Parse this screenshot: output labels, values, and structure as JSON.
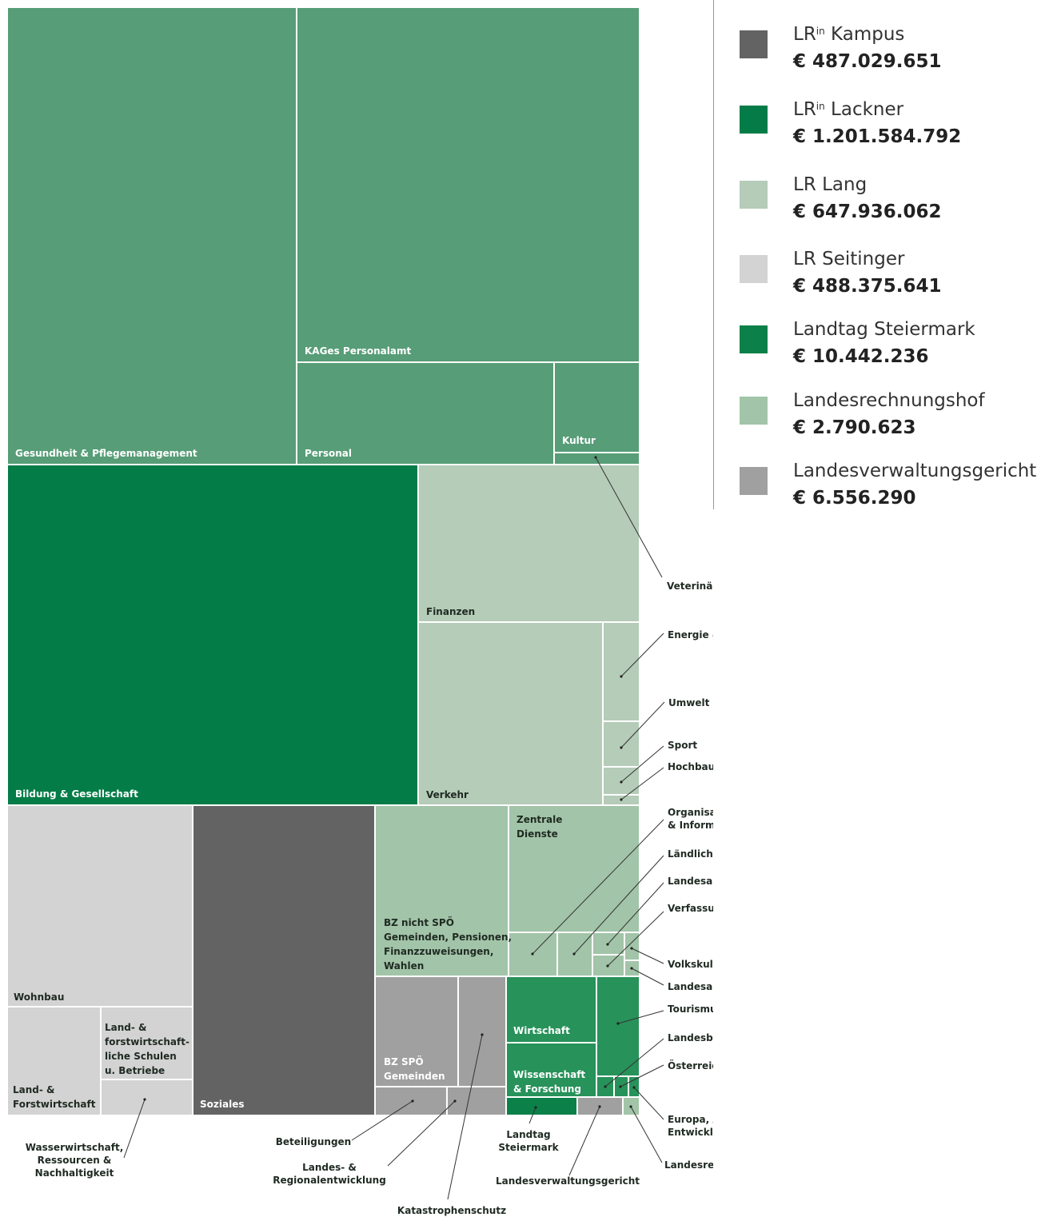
{
  "chart_data": {
    "type": "treemap",
    "colors": {
      "kampus": "#636363",
      "lackner": "#037c47",
      "lang": "#b5ccb8",
      "seitinger": "#d3d3d3",
      "landtag": "#0c8049",
      "lrh": "#a2c4a8",
      "lvwg": "#a0a0a0",
      "schoepfer_legacy": "#579d77",
      "wirtschaft_green": "#27925a"
    },
    "legend": [
      {
        "key": "kampus",
        "name": "LR",
        "sup": "in",
        "name_rest": " Kampus",
        "value": "€ 487.029.651"
      },
      {
        "key": "lackner",
        "name": "LR",
        "sup": "in",
        "name_rest": " Lackner",
        "value": "€ 1.201.584.792"
      },
      {
        "key": "lang",
        "name": "LR Lang",
        "sup": "",
        "name_rest": "",
        "value": "€ 647.936.062"
      },
      {
        "key": "seitinger",
        "name": "LR Seitinger",
        "sup": "",
        "name_rest": "",
        "value": "€ 488.375.641"
      },
      {
        "key": "landtag",
        "name": "Landtag Steiermark",
        "sup": "",
        "name_rest": "",
        "value": "€ 10.442.236"
      },
      {
        "key": "lrh",
        "name": "Landesrechnungshof",
        "sup": "",
        "name_rest": "",
        "value": "€ 2.790.623"
      },
      {
        "key": "lvwg",
        "name": "Landesverwaltungsgericht",
        "sup": "",
        "name_rest": "",
        "value": "€ 6.556.290"
      }
    ],
    "cells": [
      {
        "id": "gesundheit",
        "label": [
          "Gesundheit & Pflegemanagement"
        ],
        "group": "schoepfer_legacy"
      },
      {
        "id": "kages",
        "label": [
          "KAGes Personalamt"
        ],
        "group": "schoepfer_legacy"
      },
      {
        "id": "personal",
        "label": [
          "Personal"
        ],
        "group": "schoepfer_legacy"
      },
      {
        "id": "kultur",
        "label": [
          "Kultur"
        ],
        "group": "schoepfer_legacy"
      },
      {
        "id": "veterinaer",
        "label": [],
        "group": "schoepfer_legacy"
      },
      {
        "id": "bildung",
        "label": [
          "Bildung & Gesellschaft"
        ],
        "group": "lackner"
      },
      {
        "id": "finanzen",
        "label": [
          "Finanzen"
        ],
        "group": "lang"
      },
      {
        "id": "verkehr",
        "label": [
          "Verkehr"
        ],
        "group": "lang"
      },
      {
        "id": "energie",
        "label": [],
        "group": "lang"
      },
      {
        "id": "umwelt",
        "label": [],
        "group": "lang"
      },
      {
        "id": "sport",
        "label": [],
        "group": "lang"
      },
      {
        "id": "hochbau",
        "label": [],
        "group": "lang"
      },
      {
        "id": "wohnbau",
        "label": [
          "Wohnbau"
        ],
        "group": "seitinger"
      },
      {
        "id": "landforst",
        "label": [
          "Land- &",
          "Forstwirtschaft"
        ],
        "group": "seitinger"
      },
      {
        "id": "schulen",
        "label": [
          "Land- &",
          "forstwirtschaft-",
          "liche Schulen",
          "u. Betriebe"
        ],
        "group": "seitinger"
      },
      {
        "id": "wasser",
        "label": [],
        "group": "seitinger"
      },
      {
        "id": "soziales",
        "label": [
          "Soziales"
        ],
        "group": "kampus"
      },
      {
        "id": "bznicht",
        "label": [
          "BZ nicht SPÖ",
          "Gemeinden, Pensionen,",
          "Finanzzuweisungen,",
          "Wahlen"
        ],
        "group": "lrh"
      },
      {
        "id": "zentrale",
        "label": [
          "Zentrale",
          "Dienste"
        ],
        "group": "lrh"
      },
      {
        "id": "organisation",
        "label": [],
        "group": "lrh"
      },
      {
        "id": "wegebau",
        "label": [],
        "group": "lrh"
      },
      {
        "id": "landesamt",
        "label": [],
        "group": "lrh"
      },
      {
        "id": "verfassung",
        "label": [],
        "group": "lrh"
      },
      {
        "id": "volkskultur",
        "label": [],
        "group": "lrh"
      },
      {
        "id": "landesarchiv",
        "label": [],
        "group": "lrh"
      },
      {
        "id": "bzspoe",
        "label": [
          "BZ SPÖ",
          "Gemeinden"
        ],
        "group": "lvwg"
      },
      {
        "id": "katastrophen",
        "label": [],
        "group": "lvwg"
      },
      {
        "id": "beteiligungen",
        "label": [],
        "group": "lvwg"
      },
      {
        "id": "regional",
        "label": [],
        "group": "lvwg"
      },
      {
        "id": "wirtschaft",
        "label": [
          "Wirtschaft"
        ],
        "group": "wirtschaft_green"
      },
      {
        "id": "wissenschaft",
        "label": [
          "Wissenschaft",
          "& Forschung"
        ],
        "group": "wirtschaft_green"
      },
      {
        "id": "tourismus",
        "label": [],
        "group": "wirtschaft_green"
      },
      {
        "id": "landesbib",
        "label": [],
        "group": "wirtschaft_green"
      },
      {
        "id": "oesterreichring",
        "label": [],
        "group": "wirtschaft_green"
      },
      {
        "id": "europa",
        "label": [],
        "group": "wirtschaft_green"
      },
      {
        "id": "landtag",
        "label": [],
        "group": "landtag"
      },
      {
        "id": "lvwg",
        "label": [],
        "group": "lvwg"
      },
      {
        "id": "lrh",
        "label": [],
        "group": "lrh"
      }
    ],
    "callouts": [
      {
        "id": "veterinaer",
        "label": [
          "Veterinärwesen"
        ]
      },
      {
        "id": "energie",
        "label": [
          "Energie & Umweltkontrolle"
        ]
      },
      {
        "id": "umwelt",
        "label": [
          "Umwelt & Raumordnung"
        ]
      },
      {
        "id": "sport",
        "label": [
          "Sport"
        ]
      },
      {
        "id": "hochbau",
        "label": [
          "Hochbau"
        ]
      },
      {
        "id": "organisation",
        "label": [
          "Organisation",
          "& Informationstechnik"
        ]
      },
      {
        "id": "wegebau",
        "label": [
          "Ländlicher Wegebau"
        ]
      },
      {
        "id": "landesamt",
        "label": [
          "Landesamtsdirektion"
        ]
      },
      {
        "id": "verfassung",
        "label": [
          "Verfassung & Inneres"
        ]
      },
      {
        "id": "volkskultur",
        "label": [
          "Volkskultur"
        ]
      },
      {
        "id": "landesarchiv",
        "label": [
          "Landesarchiv"
        ]
      },
      {
        "id": "tourismus",
        "label": [
          "Tourismus"
        ]
      },
      {
        "id": "landesbib",
        "label": [
          "Landesbibliothek"
        ]
      },
      {
        "id": "oesterreichring",
        "label": [
          "Österreichring"
        ]
      },
      {
        "id": "europa",
        "label": [
          "Europa, Außenbeziehungen,",
          "Entwicklungszusammenarbeit"
        ]
      },
      {
        "id": "lrh",
        "label": [
          "Landesrechnungshof"
        ]
      },
      {
        "id": "lvwg",
        "label": [
          "Landesverwaltungsgericht"
        ]
      },
      {
        "id": "landtag",
        "label": [
          "Landtag",
          "Steiermark"
        ]
      },
      {
        "id": "katastrophen",
        "label": [
          "Katastrophenschutz"
        ]
      },
      {
        "id": "regional",
        "label": [
          "Landes- &",
          "Regionalentwicklung"
        ]
      },
      {
        "id": "beteiligungen",
        "label": [
          "Beteiligungen"
        ]
      },
      {
        "id": "wasser",
        "label": [
          "Wasserwirtschaft,",
          "Ressourcen &",
          "Nachhaltigkeit"
        ]
      }
    ]
  }
}
